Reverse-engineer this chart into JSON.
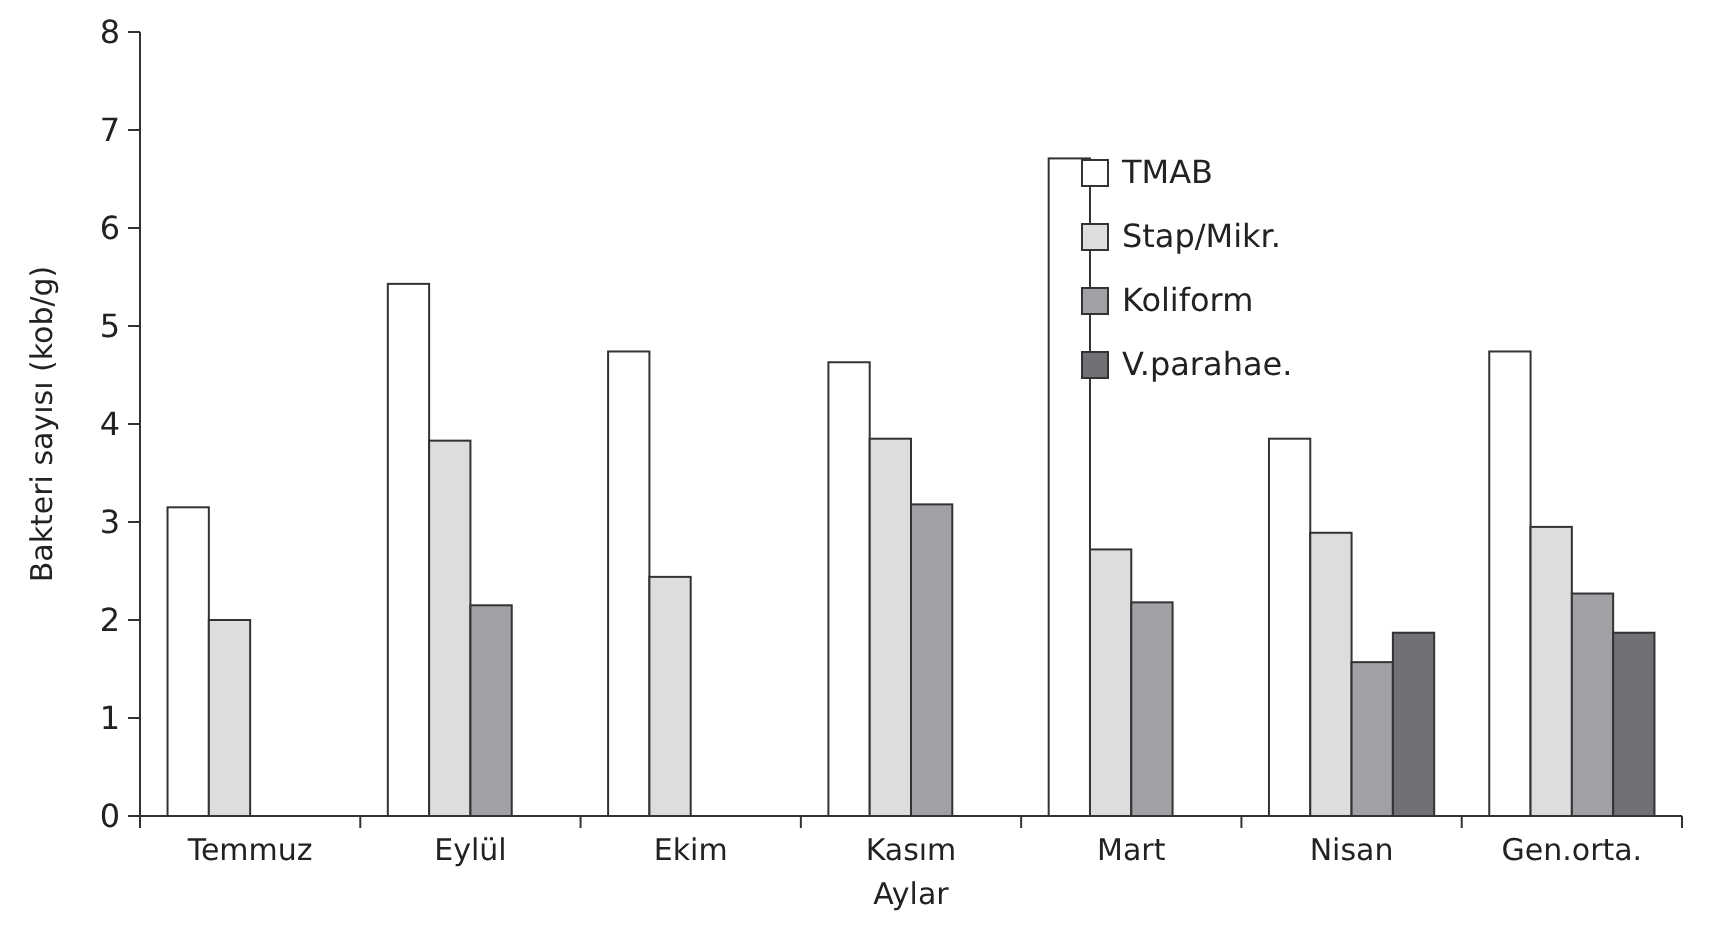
{
  "chart_data": {
    "type": "bar",
    "xlabel": "Aylar",
    "ylabel": "Bakteri sayısı (kob/g)",
    "categories": [
      "Temmuz",
      "Eylül",
      "Ekim",
      "Kasım",
      "Mart",
      "Nisan",
      "Gen.orta."
    ],
    "series": [
      {
        "name": "TMAB",
        "color": "#ffffff",
        "values": [
          3.15,
          5.43,
          4.74,
          4.63,
          6.71,
          3.85,
          4.74
        ]
      },
      {
        "name": "Stap/Mikr.",
        "color": "#dcdddf",
        "values": [
          2.0,
          3.83,
          2.44,
          3.85,
          2.72,
          2.89,
          2.95
        ]
      },
      {
        "name": "Koliform",
        "color": "#a0a1a5",
        "values": [
          null,
          2.15,
          null,
          3.18,
          2.18,
          1.57,
          2.27
        ]
      },
      {
        "name": "V.parahae.",
        "color": "#707175",
        "values": [
          null,
          null,
          null,
          null,
          null,
          1.87,
          1.87
        ]
      }
    ],
    "ylim": [
      0,
      8
    ],
    "yticks": [
      0,
      1,
      2,
      3,
      4,
      5,
      6,
      7,
      8
    ],
    "grid": false,
    "legend": "top right"
  }
}
